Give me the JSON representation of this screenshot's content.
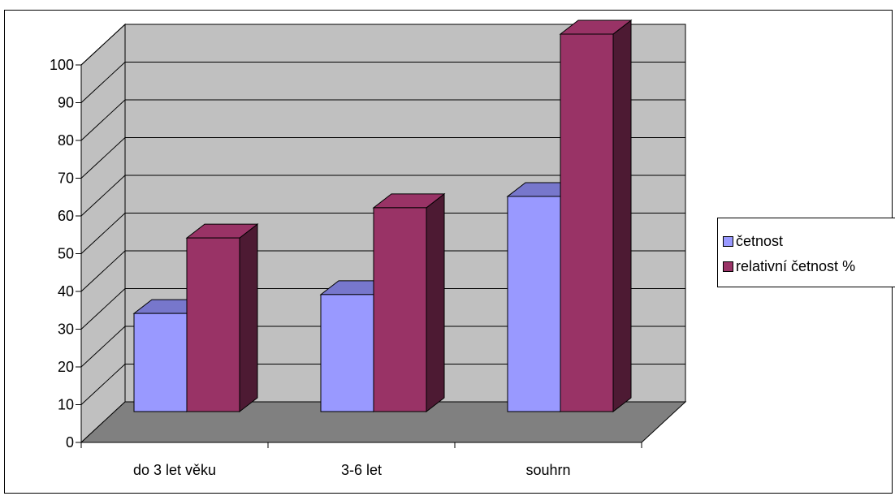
{
  "chart_data": {
    "type": "bar",
    "categories": [
      "do 3 let věku",
      "3-6 let",
      "souhrn"
    ],
    "series": [
      {
        "name": "četnost",
        "values": [
          26,
          31,
          57
        ]
      },
      {
        "name": "relativní četnost %",
        "values": [
          46,
          54,
          100
        ]
      }
    ],
    "yticks": [
      "0",
      "10",
      "20",
      "30",
      "40",
      "50",
      "60",
      "70",
      "80",
      "90",
      "100"
    ],
    "ylim": [
      0,
      100
    ],
    "title": "",
    "xlabel": "",
    "ylabel": "",
    "grid": true,
    "legend_position": "right",
    "colors": {
      "series_front": [
        "#9999ff",
        "#993366"
      ],
      "series_top": [
        "#7777cc",
        "#993366"
      ],
      "series_side": [
        "#4d4d80",
        "#4d1a33"
      ],
      "back_wall": "#c0c0c0",
      "floor": "#808080"
    }
  }
}
